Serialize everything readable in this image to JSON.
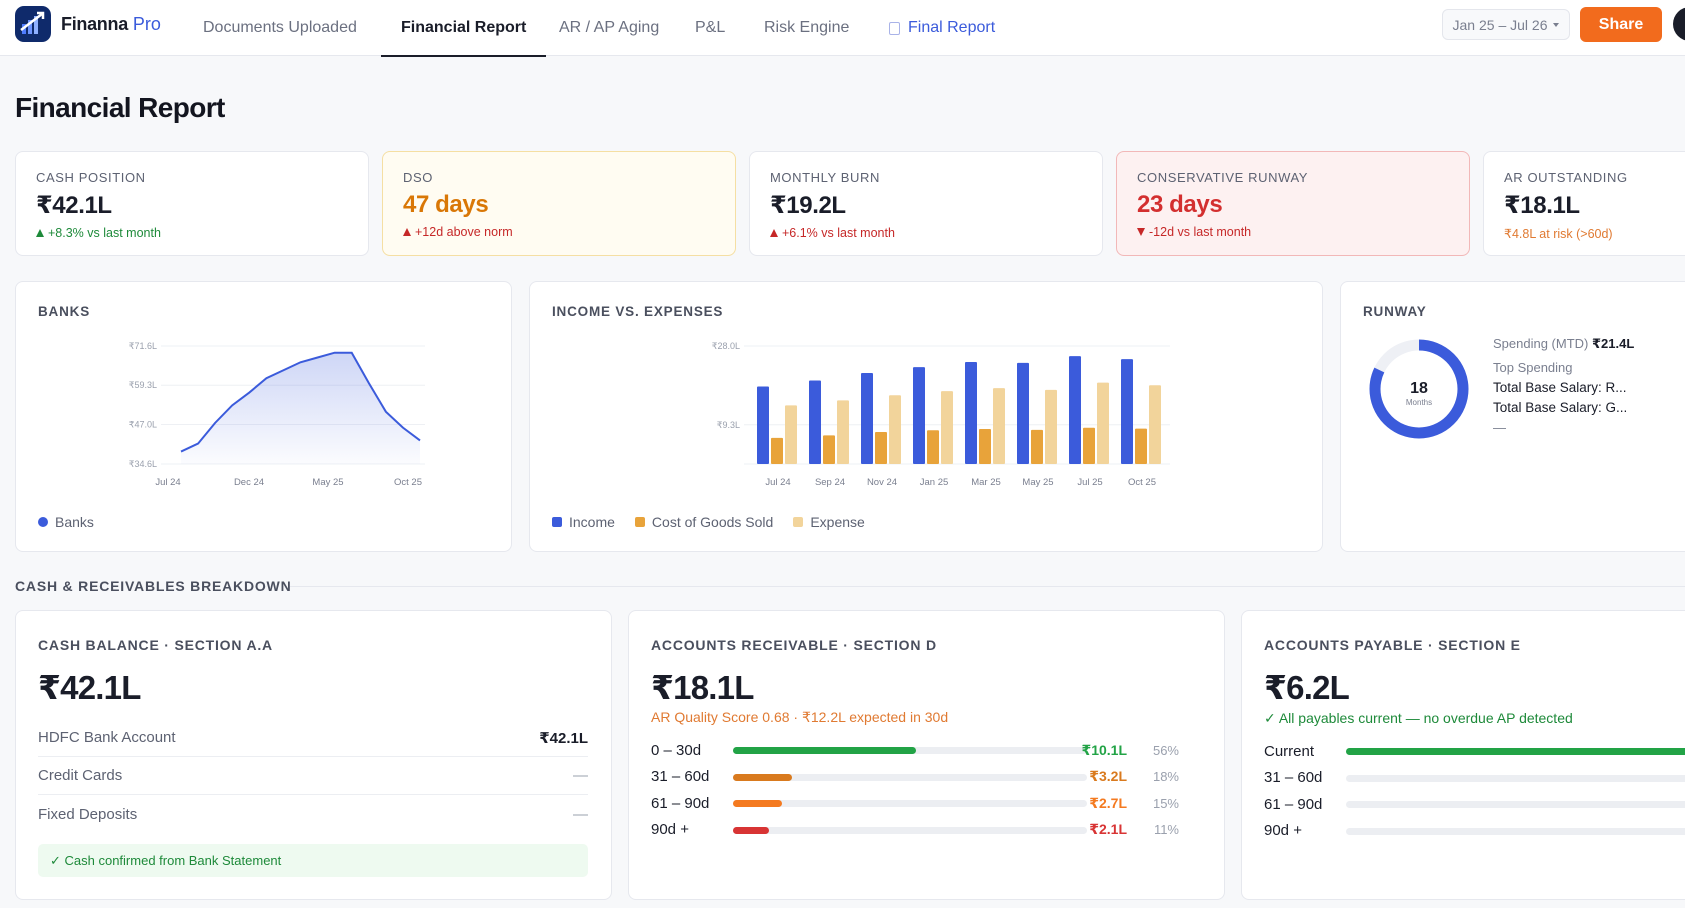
{
  "app": {
    "name": "Finanna",
    "suffix": "Pro"
  },
  "nav": {
    "tabs": [
      {
        "label": "Documents Uploaded"
      },
      {
        "label": "Financial Report"
      },
      {
        "label": "AR / AP Aging"
      },
      {
        "label": "P&L"
      },
      {
        "label": "Risk Engine"
      },
      {
        "label": "Final Report"
      }
    ],
    "date_range": "Jan 25 – Jul 26",
    "share_label": "Share"
  },
  "page": {
    "title": "Financial Report"
  },
  "kpis": [
    {
      "label": "CASH POSITION",
      "value": "₹42.1L",
      "delta": "+8.3% vs last month",
      "color": "#1e8a3a"
    },
    {
      "label": "DSO",
      "value": "47 days",
      "delta": "+12d above norm",
      "color": "#d97706"
    },
    {
      "label": "MONTHLY BURN",
      "value": "₹19.2L",
      "delta": "+6.1% vs last month",
      "color": "#c62828"
    },
    {
      "label": "CONSERVATIVE RUNWAY",
      "value": "23 days",
      "delta": "-12d vs last month",
      "color": "#d32f2f"
    },
    {
      "label": "AR OUTSTANDING",
      "value": "₹18.1L",
      "delta": "₹4.8L at risk (>60d)",
      "color": "#e07a32"
    }
  ],
  "banks_card": {
    "title": "BANKS",
    "legend": "Banks",
    "chart_data": {
      "type": "area",
      "ytick_labels": [
        "₹71.6L",
        "₹59.3L",
        "₹47.0L",
        "₹34.6L"
      ],
      "yticks": [
        71.6,
        59.3,
        47.0,
        34.6
      ],
      "ylim": [
        34.6,
        71.6
      ],
      "xtick_labels": [
        "Jul 24",
        "Dec 24",
        "May 25",
        "Oct 25"
      ],
      "series": [
        {
          "name": "Banks",
          "values": [
            38.5,
            41.0,
            47.5,
            53.0,
            57.0,
            61.5,
            64.0,
            66.5,
            68.0,
            69.5,
            69.5,
            60.0,
            51.0,
            46.0,
            42.0
          ],
          "color": "#3b5bdb"
        }
      ]
    }
  },
  "income_card": {
    "title": "INCOME VS. EXPENSES",
    "chart_data": {
      "type": "bar",
      "ytick_labels": [
        "₹28.0L",
        "₹9.3L"
      ],
      "yticks": [
        28.0,
        9.3
      ],
      "ylim": [
        0,
        28.0
      ],
      "categories": [
        "Jul 24",
        "Sep 24",
        "Nov 24",
        "Jan 25",
        "Mar 25",
        "May 25",
        "Jul 25",
        "Oct 25"
      ],
      "series": [
        {
          "name": "Income",
          "values": [
            18.4,
            19.8,
            21.6,
            23.0,
            24.2,
            24.0,
            25.6,
            24.9
          ],
          "color": "#3b5bdb"
        },
        {
          "name": "Cost of Goods Sold",
          "values": [
            6.2,
            6.8,
            7.6,
            8.0,
            8.3,
            8.1,
            8.6,
            8.4
          ],
          "color": "#e8a33a"
        },
        {
          "name": "Expense",
          "values": [
            13.9,
            15.1,
            16.3,
            17.3,
            18.0,
            17.6,
            19.3,
            18.7
          ],
          "color": "#f2d49b"
        }
      ]
    }
  },
  "runway_card": {
    "title": "RUNWAY",
    "months_value": "18",
    "months_label": "Months",
    "fill_fraction": 0.82,
    "spending_label": "Spending (MTD)",
    "spending_value": "₹21.4L",
    "top_label": "Top Spending",
    "top_items": [
      "Total Base Salary: R...",
      "Total Base Salary: G..."
    ],
    "empty": "—"
  },
  "section": {
    "title": "CASH & RECEIVABLES BREAKDOWN"
  },
  "cash_balance": {
    "title": "CASH BALANCE · SECTION A.A",
    "value": "₹42.1L",
    "rows": [
      {
        "label": "HDFC Bank Account",
        "value": "₹42.1L"
      },
      {
        "label": "Credit Cards",
        "value": "—"
      },
      {
        "label": "Fixed Deposits",
        "value": "—"
      }
    ],
    "confirm": "✓ Cash confirmed from Bank Statement"
  },
  "receivables": {
    "title": "ACCOUNTS RECEIVABLE · SECTION D",
    "value": "₹18.1L",
    "note": "AR Quality Score 0.68 · ₹12.2L expected in 30d",
    "rows": [
      {
        "label": "0 – 30d",
        "amount": "₹10.1L",
        "pct": "56%",
        "fraction": 0.56,
        "color": "#22a346"
      },
      {
        "label": "31 – 60d",
        "amount": "₹3.2L",
        "pct": "18%",
        "fraction": 0.18,
        "color": "#d97a1e"
      },
      {
        "label": "61 – 90d",
        "amount": "₹2.7L",
        "pct": "15%",
        "fraction": 0.15,
        "color": "#f47a20"
      },
      {
        "label": "90d +",
        "amount": "₹2.1L",
        "pct": "11%",
        "fraction": 0.11,
        "color": "#d83434"
      }
    ]
  },
  "payables": {
    "title": "ACCOUNTS PAYABLE · SECTION E",
    "value": "₹6.2L",
    "note": "✓ All payables current — no overdue AP detected",
    "rows": [
      {
        "label": "Current",
        "fraction": 1.0,
        "color": "#22a346"
      },
      {
        "label": "31 – 60d",
        "fraction": 0,
        "color": "#d97a1e"
      },
      {
        "label": "61 – 90d",
        "fraction": 0,
        "color": "#f47a20"
      },
      {
        "label": "90d +",
        "fraction": 0,
        "color": "#d83434"
      }
    ]
  }
}
